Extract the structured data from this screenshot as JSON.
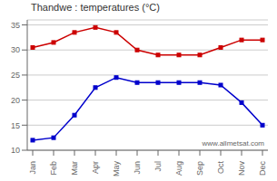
{
  "chart_data": {
    "type": "line",
    "title": "Thandwe : temperatures (°C)",
    "categories": [
      "Jan",
      "Feb",
      "Mar",
      "Apr",
      "May",
      "Jun",
      "Jul",
      "Aug",
      "Sep",
      "Oct",
      "Nov",
      "Dec"
    ],
    "series": [
      {
        "color": "#cc0000",
        "marker": "square",
        "values": [
          30.5,
          31.5,
          33.5,
          34.5,
          33.5,
          30.0,
          29.0,
          29.0,
          29.0,
          30.5,
          32.0,
          32.0
        ]
      },
      {
        "color": "#0000cc",
        "marker": "square",
        "values": [
          12.0,
          12.5,
          17.0,
          22.5,
          24.5,
          23.5,
          23.5,
          23.5,
          23.5,
          23.0,
          19.5,
          15.0
        ]
      }
    ],
    "ylim": [
      10,
      36
    ],
    "yticks": [
      10,
      15,
      20,
      25,
      30,
      35
    ],
    "grid": "y",
    "annotations": [
      "www.allmetsat.com"
    ]
  }
}
